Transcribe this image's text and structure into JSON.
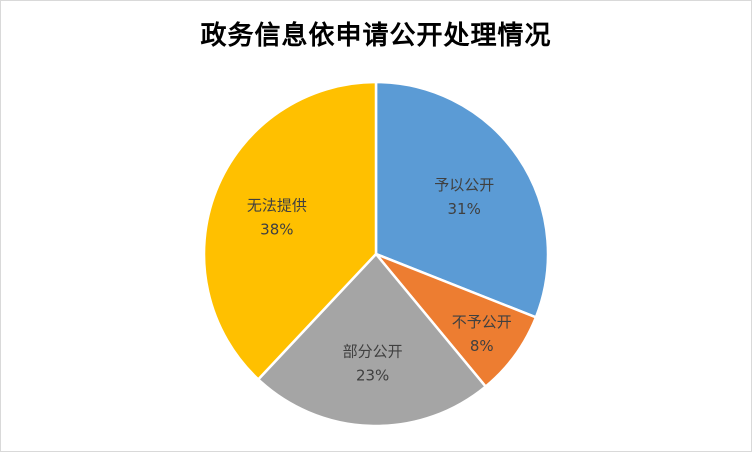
{
  "chart_data": {
    "type": "pie",
    "title": "政务信息依申请公开处理情况",
    "slices": [
      {
        "label": "予以公开",
        "value": 31,
        "value_label": "31%",
        "color": "#5B9BD5"
      },
      {
        "label": "不予公开",
        "value": 8,
        "value_label": "8%",
        "color": "#ED7D31"
      },
      {
        "label": "部分公开",
        "value": 23,
        "value_label": "23%",
        "color": "#A5A5A5"
      },
      {
        "label": "无法提供",
        "value": 38,
        "value_label": "38%",
        "color": "#FFC000"
      }
    ]
  }
}
